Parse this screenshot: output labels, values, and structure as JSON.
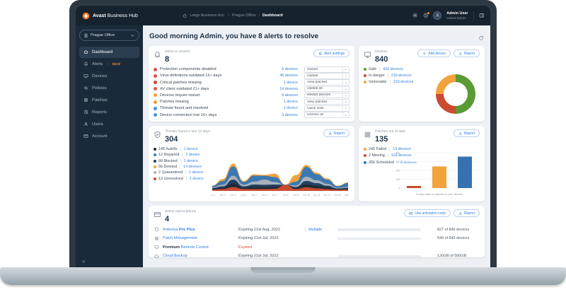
{
  "window": {
    "brand_bold": "Avast",
    "brand_rest": "Business Hub"
  },
  "topbar": {
    "breadcrumb_separator": "/",
    "breadcrumb": [
      {
        "label": "Largo Business Acc.",
        "current": false
      },
      {
        "label": "Prague Office",
        "current": false
      },
      {
        "label": "Dashboard",
        "current": true
      }
    ],
    "user": {
      "name": "Admin User",
      "role": "Global Admin"
    }
  },
  "sidebar": {
    "org_selector_label": "Prague Office",
    "collapse_glyph": "«",
    "items": [
      {
        "label": "Dashboard",
        "icon": "dashboard",
        "active": true
      },
      {
        "label": "Alerts",
        "icon": "bell",
        "badge": "NEW"
      },
      {
        "label": "Devices",
        "icon": "monitor"
      },
      {
        "label": "Policies",
        "icon": "sliders"
      },
      {
        "label": "Patches",
        "icon": "patches"
      },
      {
        "label": "Reports",
        "icon": "pie"
      },
      {
        "label": "Users",
        "icon": "user"
      },
      {
        "label": "Account",
        "icon": "card"
      }
    ]
  },
  "main": {
    "greeting": "Good morning Admin, you have 8 alerts to resolve"
  },
  "alerts_card": {
    "title": "Alerts to resolve",
    "count": "8",
    "settings_button": "Alert settings",
    "rows": [
      {
        "label": "Protection components disabled",
        "devices": "6 devices",
        "action": "Restart",
        "color": "#dd5244"
      },
      {
        "label": "Virus definitions outdated 14+ days",
        "devices": "45 devices",
        "action": "Update",
        "color": "#dd5244"
      },
      {
        "label": "Critical patches missing",
        "devices": "1 device",
        "action": "View patches",
        "color": "#cf4436"
      },
      {
        "label": "AV client outdated 21+ days",
        "devices": "14 devices",
        "action": "Update all",
        "color": "#e2574c"
      },
      {
        "label": "Devices require restart",
        "devices": "6 devices",
        "action": "Restart devices",
        "color": "#f0a03c"
      },
      {
        "label": "Patches missing",
        "devices": "1 device",
        "action": "View patches",
        "color": "#f0a03c"
      },
      {
        "label": "Threats found and resolved",
        "devices": "1 device",
        "action": "Quick scan",
        "color": "#4a90d9"
      },
      {
        "label": "Device connection lost 14+ days",
        "devices": "3 devices",
        "action": "Dismiss all",
        "color": "#4a90d9"
      }
    ]
  },
  "devices_card": {
    "title": "Devices",
    "count": "840",
    "add_button": "Add device",
    "report_button": "Report",
    "legend": [
      {
        "label": "Safe",
        "value": "420 devices",
        "color": "#5a9b33"
      },
      {
        "label": "In danger",
        "value": "210 devices",
        "color": "#ca4b2f"
      },
      {
        "label": "Vulnerable",
        "value": "210 devices",
        "color": "#f0a23b"
      }
    ]
  },
  "threats_card": {
    "title": "Threats found in last 14 days",
    "count": "304",
    "report_button": "Report",
    "legend": [
      {
        "label": "145 Autofix",
        "value": "1 device",
        "color": "#1d2b38"
      },
      {
        "label": "12 Repaired",
        "value": "1 device",
        "color": "#3c78b4"
      },
      {
        "label": "89 Blocked",
        "value": "1 device",
        "color": "#24405e"
      },
      {
        "label": "56 Deleted",
        "value": "14 devices",
        "color": "#f2a33c"
      },
      {
        "label": "2 Quarantined",
        "value": "1 device",
        "color": "#a9b2ba"
      },
      {
        "label": "13 Unresolved",
        "value": "1 device",
        "color": "#c84b2f"
      }
    ]
  },
  "patches_card": {
    "title": "Patches out of date",
    "count": "135",
    "report_button": "Report",
    "legend": [
      {
        "label": "245 Failed",
        "value": "14 devices",
        "color": "#f2a33c"
      },
      {
        "label": "2 Missing",
        "value": "123 devices",
        "color": "#c84b2f"
      },
      {
        "label": "356 Scheduled",
        "value": "6 devices",
        "color": "#3572b0"
      }
    ]
  },
  "subscriptions_card": {
    "title": "Active subscriptions",
    "count": "4",
    "activation_button": "Use activation code",
    "report_button": "Report",
    "rows": [
      {
        "icon": "shield",
        "name_parts": [
          {
            "t": "Antivirus ",
            "b": false,
            "c": "blue"
          },
          {
            "t": "Pro Plus",
            "b": true,
            "c": "blue"
          }
        ],
        "expiry": "Expiring 21st Aug, 2022",
        "expired": false,
        "extra": "Multiple",
        "bar_pct": 90,
        "usage": "827 of 840 devices"
      },
      {
        "icon": "patches",
        "name_parts": [
          {
            "t": "Patch Management",
            "b": false,
            "c": "blue"
          }
        ],
        "expiry": "Expiring 21st Jul, 2022",
        "expired": false,
        "extra": "",
        "bar_pct": 62,
        "usage": "540 of 840 devices"
      },
      {
        "icon": "monitor",
        "name_parts": [
          {
            "t": "Premium ",
            "b": true,
            "c": "navy"
          },
          {
            "t": "Remote Control",
            "b": false,
            "c": "blue"
          }
        ],
        "expiry": "Expired",
        "expired": true,
        "extra": "",
        "bar_pct": null,
        "usage": ""
      },
      {
        "icon": "cloud",
        "name_parts": [
          {
            "t": "Cloud Backup",
            "b": false,
            "c": "blue"
          }
        ],
        "expiry": "Expiring 21st Jul, 2022",
        "expired": false,
        "extra": "",
        "bar_pct": 62,
        "usage": "120GB of 500GB"
      }
    ]
  },
  "chart_data": [
    {
      "type": "pie",
      "variant": "donut",
      "title": "Devices",
      "labels": [
        "Safe",
        "In danger",
        "Vulnerable"
      ],
      "values": [
        420,
        210,
        210
      ],
      "colors": [
        "#5a9b33",
        "#ca4b2f",
        "#f2a33c"
      ],
      "total": 840,
      "legend_position": "left"
    },
    {
      "type": "area",
      "variant": "stacked",
      "title": "Threats found in last 14 days",
      "x": [
        "Jun 1",
        "Jun 2",
        "Jun 3",
        "Jun 4",
        "Jun 5",
        "Jun 6",
        "Jun 7",
        "Jun 8",
        "Jun 9",
        "Jun 10",
        "Jun 11",
        "Jun 12",
        "Jun 13",
        "Jun 14"
      ],
      "ylim": [
        0,
        12
      ],
      "grid": false,
      "legend_position": "left",
      "series": [
        {
          "name": "Unresolved",
          "color": "#c84b2f",
          "values": [
            0.6,
            0.8,
            1.6,
            0.8,
            0.8,
            0.8,
            0.9,
            2.6,
            0.8,
            1.5,
            1.1,
            0.8,
            0.5,
            0.6
          ]
        },
        {
          "name": "Autofix",
          "color": "#1d2b38",
          "values": [
            0.3,
            0.5,
            1.5,
            0.5,
            0.8,
            0.8,
            0.8,
            0.0,
            0.4,
            1.2,
            1.0,
            0.6,
            0.2,
            0.3
          ]
        },
        {
          "name": "Blocked",
          "color": "#24405e",
          "values": [
            0.3,
            0.6,
            1.7,
            0.6,
            1.1,
            1.0,
            1.0,
            0.0,
            0.5,
            1.5,
            1.2,
            0.8,
            0.3,
            0.4
          ]
        },
        {
          "name": "Quarantined",
          "color": "#a9b2ba",
          "values": [
            0.3,
            0.7,
            1.6,
            0.7,
            1.2,
            2.2,
            1.0,
            0.0,
            0.6,
            1.8,
            1.2,
            0.8,
            0.3,
            0.4
          ]
        },
        {
          "name": "Repaired",
          "color": "#3c78b4",
          "values": [
            0.6,
            1.6,
            4.0,
            1.2,
            2.6,
            1.6,
            2.2,
            0.0,
            1.6,
            4.2,
            2.6,
            1.8,
            0.7,
            1.6
          ]
        },
        {
          "name": "Deleted",
          "color": "#f2a33c",
          "values": [
            0.2,
            0.8,
            1.2,
            0.4,
            0.5,
            0.4,
            1.4,
            0.0,
            2.8,
            0.8,
            0.6,
            0.5,
            0.2,
            0.3
          ]
        }
      ]
    },
    {
      "type": "bar",
      "title": "Patches out of date",
      "categories": [
        "Missing",
        "Failed",
        "Scheduled"
      ],
      "values": [
        2,
        245,
        356
      ],
      "colors": [
        "#c84b2f",
        "#f2a33c",
        "#3572b0"
      ],
      "yticks": [
        0,
        100,
        200,
        300,
        400
      ],
      "ylim": [
        0,
        400
      ],
      "xlabel": "Current state of patches on your devices",
      "ylabel": ""
    }
  ]
}
